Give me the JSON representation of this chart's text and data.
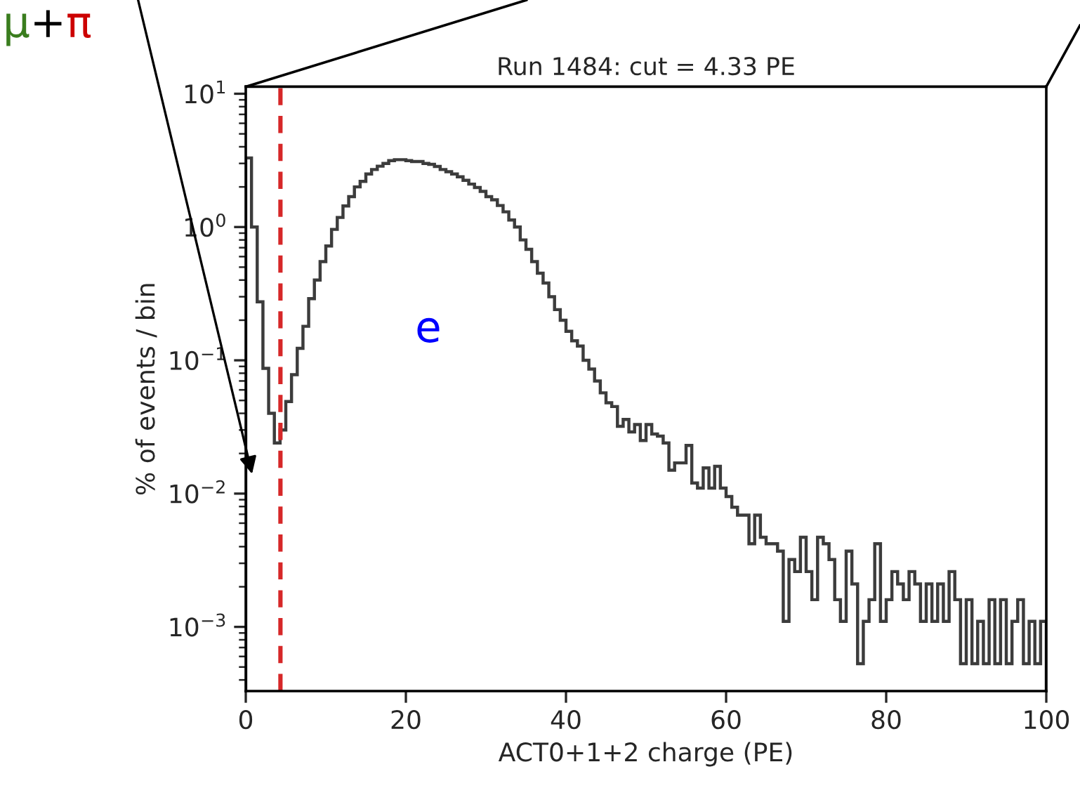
{
  "chart_data": {
    "type": "histogram",
    "title": "Run 1484: cut = 4.33 PE",
    "xlabel": "ACT0+1+2 charge (PE)",
    "ylabel": "% of events / bin",
    "bins": [
      0,
      0.714,
      1.429,
      2.143,
      2.857,
      3.571,
      4.286,
      5,
      5.714,
      6.429,
      7.143,
      7.857,
      8.571,
      9.286,
      10,
      10.714,
      11.429,
      12.143,
      12.857,
      13.571,
      14.286,
      15,
      15.714,
      16.429,
      17.143,
      17.857,
      18.571,
      19.286,
      20,
      20.714,
      21.429,
      22.143,
      22.857,
      23.571,
      24.286,
      25,
      25.714,
      26.429,
      27.143,
      27.857,
      28.571,
      29.286,
      30,
      30.714,
      31.429,
      32.143,
      32.857,
      33.571,
      34.286,
      35,
      35.714,
      36.429,
      37.143,
      37.857,
      38.571,
      39.286,
      40,
      40.714,
      41.429,
      42.143,
      42.857,
      43.571,
      44.286,
      45,
      45.714,
      46.429,
      47.143,
      47.857,
      48.571,
      49.286,
      50,
      50.714,
      51.429,
      52.143,
      52.857,
      53.571,
      54.286,
      55,
      55.714,
      56.429,
      57.143,
      57.857,
      58.571,
      59.286,
      60,
      60.714,
      61.429,
      62.143,
      62.857,
      63.571,
      64.286,
      65,
      65.714,
      66.429,
      67.143,
      67.857,
      68.571,
      69.286,
      70,
      70.714,
      71.429,
      72.143,
      72.857,
      73.571,
      74.286,
      75,
      75.714,
      76.429,
      77.143,
      77.857,
      78.571,
      79.286,
      80,
      80.714,
      81.429,
      82.143,
      82.857,
      83.571,
      84.286,
      85,
      85.714,
      86.429,
      87.143,
      87.857,
      88.571,
      89.286,
      90,
      90.714,
      91.429,
      92.143,
      92.857,
      93.571,
      94.286,
      95,
      95.714,
      96.429,
      97.143,
      97.857,
      98.571,
      99.286,
      100
    ],
    "values": [
      3.3,
      1.0,
      0.275,
      0.087,
      0.04,
      0.024,
      0.03,
      0.049,
      0.078,
      0.123,
      0.18,
      0.29,
      0.4,
      0.55,
      0.72,
      0.96,
      1.18,
      1.44,
      1.69,
      2.0,
      2.2,
      2.5,
      2.7,
      2.86,
      3.0,
      3.15,
      3.2,
      3.2,
      3.15,
      3.1,
      3.1,
      3.0,
      2.95,
      2.85,
      2.7,
      2.6,
      2.5,
      2.38,
      2.24,
      2.1,
      1.98,
      1.85,
      1.69,
      1.6,
      1.45,
      1.3,
      1.13,
      1.0,
      0.8,
      0.68,
      0.55,
      0.45,
      0.38,
      0.3,
      0.24,
      0.2,
      0.165,
      0.14,
      0.128,
      0.1,
      0.086,
      0.07,
      0.057,
      0.048,
      0.045,
      0.032,
      0.036,
      0.029,
      0.033,
      0.025,
      0.033,
      0.028,
      0.027,
      0.024,
      0.015,
      0.017,
      0.017,
      0.023,
      0.012,
      0.011,
      0.0156,
      0.011,
      0.016,
      0.011,
      0.0095,
      0.0079,
      0.0069,
      0.0069,
      0.0042,
      0.0069,
      0.0047,
      0.0042,
      0.0042,
      0.0037,
      0.0011,
      0.0032,
      0.0026,
      0.0047,
      0.0026,
      0.0016,
      0.0047,
      0.0042,
      0.0032,
      0.0016,
      0.0011,
      0.0037,
      0.0021,
      0.00053,
      0.0011,
      0.0016,
      0.0042,
      0.0011,
      0.0016,
      0.0026,
      0.0021,
      0.0016,
      0.0026,
      0.0021,
      0.0011,
      0.0021,
      0.0011,
      0.0021,
      0.0011,
      0.0026,
      0.0016,
      0.00053,
      0.0016,
      0.00053,
      0.0011,
      0.00053,
      0.0016,
      0.00053,
      0.0016,
      0.00053,
      0.0011,
      0.0016,
      0.00053,
      0.0011,
      0.00053,
      0.0011
    ],
    "color": "#3c3c3c",
    "log": "y",
    "xlim": [
      0,
      100
    ],
    "xticks": [
      0,
      20,
      40,
      60,
      80,
      100
    ],
    "ylim": [
      0.00033,
      11.3
    ],
    "yticks": [
      {
        "value": 0.001,
        "label": "10$^{−3}$"
      },
      {
        "value": 0.01,
        "label": "10$^{−2}$"
      },
      {
        "value": 0.1,
        "label": "10$^{−1}$"
      },
      {
        "value": 1,
        "label": "10$^{0}$"
      },
      {
        "value": 10,
        "label": "10$^{1}$"
      }
    ],
    "ref_lines": [
      {
        "axis": "x",
        "value": 4.33,
        "color": "#d62728",
        "line_style": "dashed"
      }
    ],
    "annotations": [
      "e",
      "μ+π"
    ]
  }
}
